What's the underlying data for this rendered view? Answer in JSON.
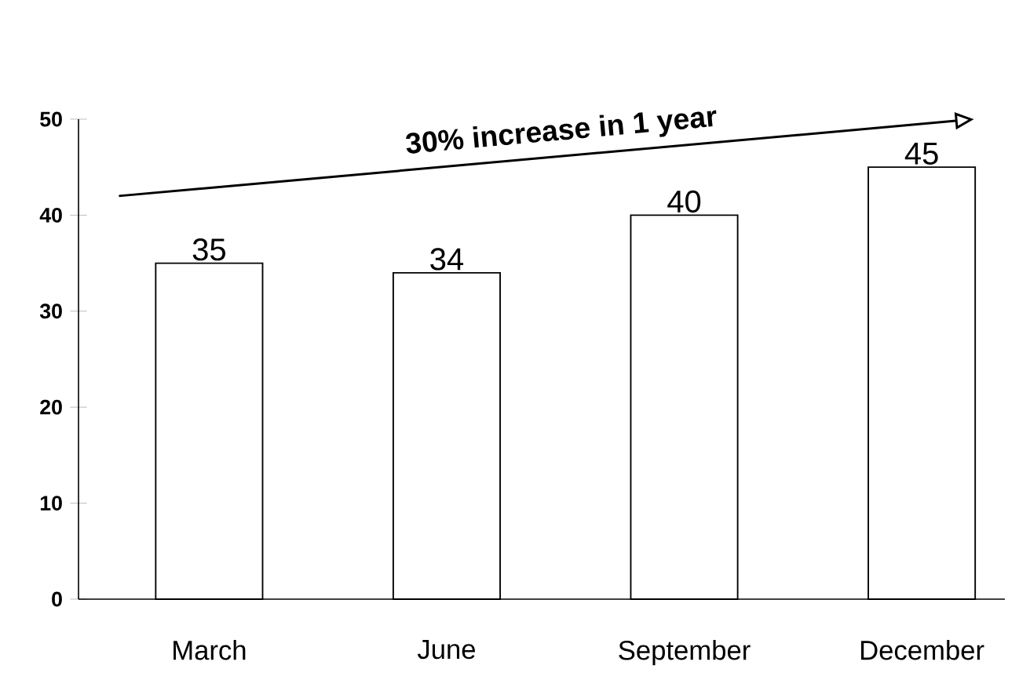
{
  "chart_data": {
    "type": "bar",
    "categories": [
      "March",
      "June",
      "September",
      "December"
    ],
    "values": [
      35,
      34,
      40,
      45
    ],
    "color": "#ffffff",
    "ylim": [
      0,
      50
    ],
    "yticks": [
      0,
      10,
      20,
      30,
      40,
      50
    ],
    "data_labels": true,
    "grid": false,
    "annotations": [
      "30% increase in 1 year"
    ]
  }
}
